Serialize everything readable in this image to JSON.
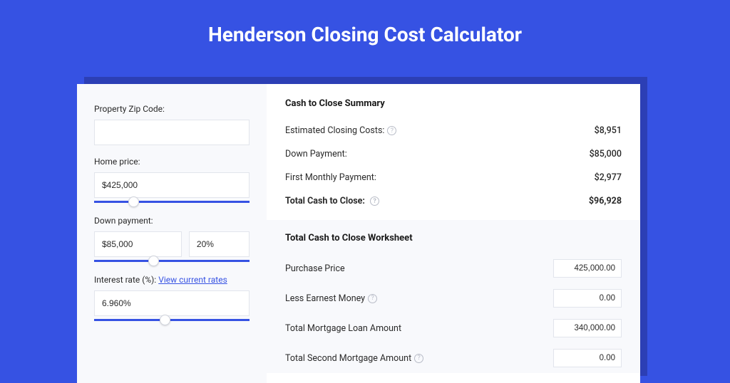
{
  "title": "Henderson Closing Cost Calculator",
  "colors": {
    "page_bg": "#3652e3",
    "shadow": "#2c3fb5",
    "card_bg": "#ffffff",
    "panel_bg": "#f8f9fc",
    "border": "#e2e5ec",
    "text": "#2a2a2a",
    "link": "#3652e3",
    "slider_track": "#3652e3"
  },
  "form": {
    "zip": {
      "label": "Property Zip Code:",
      "value": ""
    },
    "home_price": {
      "label": "Home price:",
      "value": "$425,000",
      "slider_pos_pct": 22
    },
    "down_payment": {
      "label": "Down payment:",
      "value": "$85,000",
      "pct": "20%",
      "slider_pos_pct": 35
    },
    "interest": {
      "label": "Interest rate (%):",
      "link_text": "View current rates",
      "value": "6.960%",
      "slider_pos_pct": 42
    }
  },
  "summary": {
    "title": "Cash to Close Summary",
    "rows": [
      {
        "label": "Estimated Closing Costs:",
        "value": "$8,951",
        "help": true
      },
      {
        "label": "Down Payment:",
        "value": "$85,000",
        "help": false
      },
      {
        "label": "First Monthly Payment:",
        "value": "$2,977",
        "help": false
      }
    ],
    "total": {
      "label": "Total Cash to Close:",
      "value": "$96,928",
      "help": true
    }
  },
  "worksheet": {
    "title": "Total Cash to Close Worksheet",
    "rows": [
      {
        "label": "Purchase Price",
        "value": "425,000.00",
        "help": false
      },
      {
        "label": "Less Earnest Money",
        "value": "0.00",
        "help": true
      },
      {
        "label": "Total Mortgage Loan Amount",
        "value": "340,000.00",
        "help": false
      },
      {
        "label": "Total Second Mortgage Amount",
        "value": "0.00",
        "help": true
      }
    ]
  }
}
